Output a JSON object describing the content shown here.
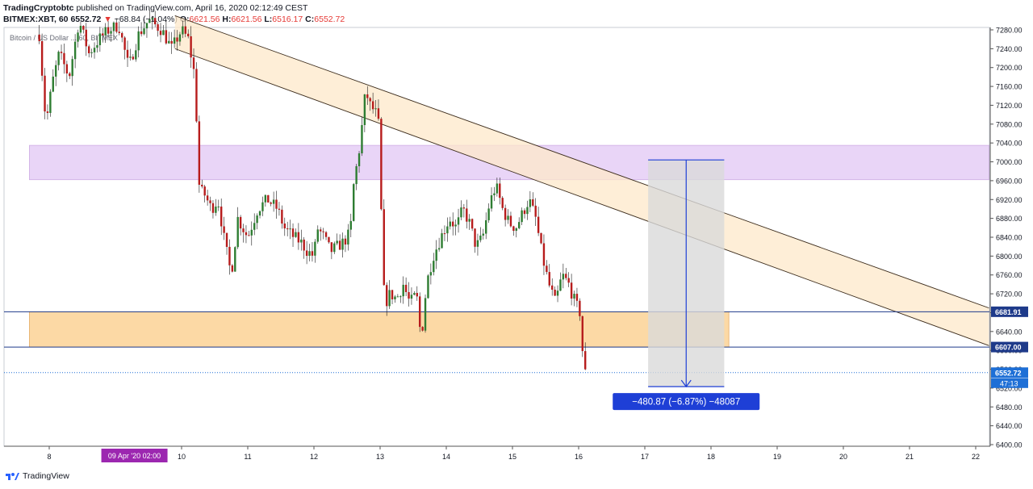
{
  "header": {
    "author": "TradingCryptobtc",
    "publish_text": "published on TradingView.com, April 16, 2020 02:12:49 CEST",
    "symbol": "BITMEX:XBT, 60",
    "last": "6552.72",
    "change": "−68.84 (−1.04%)",
    "open_label": "O:",
    "open": "6621.56",
    "high_label": "H:",
    "high": "6621.56",
    "low_label": "L:",
    "low": "6516.17",
    "close_label": "C:",
    "close": "6552.72"
  },
  "legend_title": "Bitcoin / US Dollar ... 60, BITMEX",
  "footer": {
    "brand": "TradingView"
  },
  "colors": {
    "up": "#26a69a",
    "down": "#ef5350",
    "candle_up_body": "#2e7d32",
    "candle_down_body": "#b71c1c",
    "resistance_zone": "#e9d5f7",
    "support_zone": "#fcd9a5",
    "channel_fill": "#fde8c9",
    "level_line": "#1e3a8a",
    "measure_blue": "#1e3fd6",
    "measure_box": "#d9d9d9",
    "date_badge": "#9c27b0"
  },
  "chart_data": {
    "type": "candlestick",
    "title": "Bitcoin / US Dollar ... 60, BITMEX",
    "y_axis": {
      "min": 6400,
      "max": 7280,
      "ticks": [
        7280,
        7240,
        7200,
        7160,
        7120,
        7080,
        7040,
        7000,
        6960,
        6920,
        6880,
        6840,
        6800,
        6760,
        6720,
        6680,
        6640,
        6600,
        6560,
        6520,
        6480,
        6440,
        6400
      ]
    },
    "x_axis": {
      "min": 7.7,
      "max": 22.2,
      "labels": [
        {
          "x": 8,
          "text": "8"
        },
        {
          "x": 10,
          "text": "10"
        },
        {
          "x": 11,
          "text": "11"
        },
        {
          "x": 12,
          "text": "12"
        },
        {
          "x": 13,
          "text": "13"
        },
        {
          "x": 14,
          "text": "14"
        },
        {
          "x": 15,
          "text": "15"
        },
        {
          "x": 16,
          "text": "16"
        },
        {
          "x": 17,
          "text": "17"
        },
        {
          "x": 18,
          "text": "18"
        },
        {
          "x": 19,
          "text": "19"
        },
        {
          "x": 20,
          "text": "20"
        },
        {
          "x": 21,
          "text": "21"
        },
        {
          "x": 22,
          "text": "22"
        }
      ],
      "highlight": {
        "x": 9.08,
        "text": "09 Apr '20   02:00"
      }
    },
    "price_path": [
      [
        7.85,
        7270
      ],
      [
        7.95,
        7080
      ],
      [
        8.05,
        7170
      ],
      [
        8.15,
        7230
      ],
      [
        8.3,
        7180
      ],
      [
        8.45,
        7300
      ],
      [
        8.6,
        7230
      ],
      [
        8.75,
        7260
      ],
      [
        8.9,
        7280
      ],
      [
        9.05,
        7290
      ],
      [
        9.2,
        7200
      ],
      [
        9.35,
        7270
      ],
      [
        9.5,
        7300
      ],
      [
        9.7,
        7280
      ],
      [
        9.85,
        7240
      ],
      [
        10.0,
        7280
      ],
      [
        10.1,
        7260
      ],
      [
        10.2,
        7180
      ],
      [
        10.27,
        6940
      ],
      [
        10.35,
        6930
      ],
      [
        10.45,
        6900
      ],
      [
        10.55,
        6920
      ],
      [
        10.65,
        6830
      ],
      [
        10.75,
        6760
      ],
      [
        10.85,
        6880
      ],
      [
        11.0,
        6840
      ],
      [
        11.15,
        6900
      ],
      [
        11.3,
        6920
      ],
      [
        11.45,
        6900
      ],
      [
        11.55,
        6860
      ],
      [
        11.7,
        6840
      ],
      [
        11.8,
        6830
      ],
      [
        11.9,
        6810
      ],
      [
        12.0,
        6800
      ],
      [
        12.05,
        6860
      ],
      [
        12.15,
        6840
      ],
      [
        12.25,
        6810
      ],
      [
        12.35,
        6820
      ],
      [
        12.45,
        6830
      ],
      [
        12.55,
        6850
      ],
      [
        12.6,
        6950
      ],
      [
        12.7,
        7040
      ],
      [
        12.78,
        7150
      ],
      [
        12.85,
        7120
      ],
      [
        12.95,
        7100
      ],
      [
        13.0,
        7060
      ],
      [
        13.03,
        6760
      ],
      [
        13.08,
        6700
      ],
      [
        13.15,
        6720
      ],
      [
        13.25,
        6710
      ],
      [
        13.35,
        6740
      ],
      [
        13.45,
        6700
      ],
      [
        13.55,
        6720
      ],
      [
        13.62,
        6620
      ],
      [
        13.7,
        6740
      ],
      [
        13.8,
        6800
      ],
      [
        13.95,
        6850
      ],
      [
        14.05,
        6880
      ],
      [
        14.15,
        6860
      ],
      [
        14.25,
        6900
      ],
      [
        14.35,
        6870
      ],
      [
        14.45,
        6820
      ],
      [
        14.55,
        6840
      ],
      [
        14.65,
        6910
      ],
      [
        14.75,
        6950
      ],
      [
        14.85,
        6900
      ],
      [
        14.95,
        6870
      ],
      [
        15.05,
        6860
      ],
      [
        15.15,
        6890
      ],
      [
        15.25,
        6920
      ],
      [
        15.35,
        6880
      ],
      [
        15.45,
        6800
      ],
      [
        15.55,
        6740
      ],
      [
        15.65,
        6700
      ],
      [
        15.75,
        6760
      ],
      [
        15.85,
        6740
      ],
      [
        15.95,
        6700
      ],
      [
        16.02,
        6680
      ],
      [
        16.05,
        6610
      ],
      [
        16.1,
        6552
      ]
    ],
    "last_price": 6552.72,
    "channel": {
      "upper": [
        [
          9.9,
          7310
        ],
        [
          22.2,
          6690
        ]
      ],
      "lower": [
        [
          9.9,
          7240
        ],
        [
          22.2,
          6610
        ]
      ]
    },
    "zones": [
      {
        "name": "resistance",
        "y_from": 6962,
        "y_to": 7035,
        "x_from": 7.7,
        "x_to": 22.2
      },
      {
        "name": "support",
        "y_from": 6607.0,
        "y_to": 6681.91,
        "x_from": 7.7,
        "x_to": 18.27
      }
    ],
    "levels": [
      {
        "value": 6681.91,
        "label": "6681.91"
      },
      {
        "value": 6607.0,
        "label": "6607.00"
      },
      {
        "value": 6552.72,
        "label": "6552.72",
        "style": "dotted"
      }
    ],
    "countdown": "47:13",
    "measure": {
      "x_from": 17.05,
      "x_to": 18.2,
      "y_top": 7004,
      "y_bottom": 6523,
      "label": "−480.87 (−6.87%) −48087"
    }
  }
}
